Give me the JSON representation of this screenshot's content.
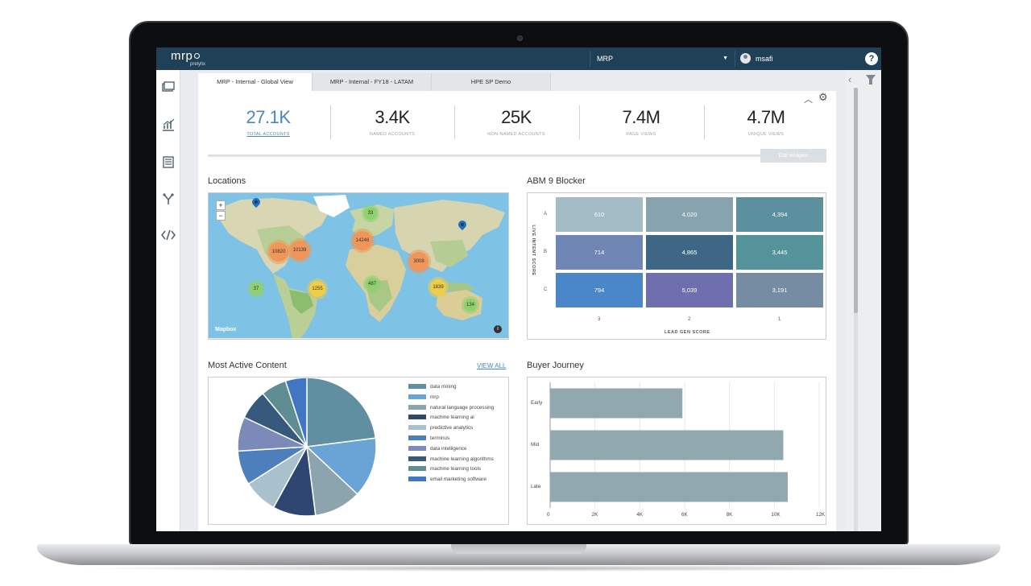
{
  "app": {
    "logo_text": "mrp",
    "logo_subtext": "prelytix",
    "org_selector": "MRP",
    "user_name": "msafi",
    "help_label": "?"
  },
  "tabs": [
    {
      "label": "MRP - Internal - Global View",
      "active": true
    },
    {
      "label": "MRP - Internal - FY18 - LATAM",
      "active": false
    },
    {
      "label": "HPE SP Demo",
      "active": false
    }
  ],
  "nav_icons": [
    "dashboard-icon",
    "analytics-icon",
    "accounts-icon",
    "campaigns-icon",
    "code-icon"
  ],
  "kpis": [
    {
      "value": "27.1K",
      "label": "TOTAL ACCOUNTS"
    },
    {
      "value": "3.4K",
      "label": "NAMED ACCOUNTS"
    },
    {
      "value": "25K",
      "label": "NON-NAMED ACCOUNTS"
    },
    {
      "value": "7.4M",
      "label": "PAGE VIEWS"
    },
    {
      "value": "4.7M",
      "label": "UNIQUE VIEWS"
    }
  ],
  "edit_widgets_label": "Edit Widgets",
  "locations": {
    "title": "Locations",
    "attribution": "Mapbox",
    "zoom_in": "+",
    "zoom_out": "−",
    "info": "i",
    "clusters": [
      "33",
      "10820",
      "10139",
      "14246",
      "3008",
      "37",
      "1255",
      "487",
      "1839",
      "134"
    ]
  },
  "abm_blocker": {
    "title": "ABM 9 Blocker",
    "x_axis_label": "LEAD GEN SCORE",
    "y_axis_label": "LIVE INTENT SCORE",
    "x_ticks": [
      "3",
      "2",
      "1"
    ],
    "y_ticks": [
      "A",
      "B",
      "C"
    ],
    "cells": [
      [
        "610",
        "4,020",
        "4,394"
      ],
      [
        "714",
        "4,865",
        "3,445"
      ],
      [
        "794",
        "5,039",
        "3,191"
      ]
    ],
    "colors": [
      [
        "#a4bcc6",
        "#87a3ad",
        "#5d909f"
      ],
      [
        "#6f86b5",
        "#3e6786",
        "#54939a"
      ],
      [
        "#4a87c8",
        "#6f6faf",
        "#768ca3"
      ]
    ]
  },
  "most_active_content": {
    "title": "Most Active Content",
    "view_all": "VIEW ALL",
    "chart_data": {
      "type": "pie",
      "labels": [
        "data mining",
        "mrp",
        "natural language processing",
        "machine learning ai",
        "predictive analytics",
        "terminus",
        "data intelligence",
        "machine learning algorithms",
        "machine learning tools",
        "email marketing software"
      ],
      "values": [
        23,
        14,
        11,
        10,
        8,
        8,
        8,
        7,
        6,
        5
      ],
      "colors": [
        "#5f8fa0",
        "#6aa3d6",
        "#8ba4ad",
        "#2f4770",
        "#a9c1cc",
        "#4e7fbd",
        "#7b8ab8",
        "#37597c",
        "#5e8e91",
        "#4177c2"
      ]
    }
  },
  "buyer_journey": {
    "title": "Buyer Journey",
    "chart_data": {
      "type": "bar",
      "orientation": "horizontal",
      "categories": [
        "Early",
        "Mid",
        "Late"
      ],
      "values": [
        5900,
        10400,
        10600
      ],
      "xlim": [
        0,
        12000
      ],
      "x_ticks": [
        "0",
        "2K",
        "4K",
        "6K",
        "8K",
        "10K",
        "12K"
      ],
      "bar_color": "#90a8ae"
    }
  }
}
